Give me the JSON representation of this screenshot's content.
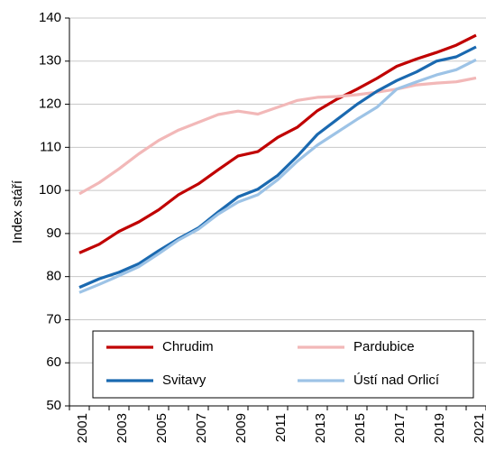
{
  "chart_data": {
    "type": "line",
    "y_label": "Index stáří",
    "categories": [
      "2001",
      null,
      "2003",
      null,
      "2005",
      null,
      "2007",
      null,
      "2009",
      null,
      "2011",
      null,
      "2013",
      null,
      "2015",
      null,
      "2017",
      null,
      "2019",
      null,
      "2021"
    ],
    "series": [
      {
        "name": "Chrudim",
        "color": "#c00000",
        "values": [
          85.5,
          87.5,
          90.5,
          92.7,
          95.5,
          99,
          101.5,
          104.8,
          108,
          109,
          112.3,
          114.7,
          118.5,
          121.2,
          123.5,
          126,
          128.8,
          130.5,
          132,
          133.7,
          136
        ]
      },
      {
        "name": "Pardubice",
        "color": "#f2b8b8",
        "values": [
          99.2,
          101.8,
          105,
          108.5,
          111.6,
          114,
          115.8,
          117.6,
          118.4,
          117.7,
          119.3,
          120.9,
          121.6,
          121.8,
          122.2,
          122.8,
          123.5,
          124.5,
          124.9,
          125.2,
          126.1
        ]
      },
      {
        "name": "Svitavy",
        "color": "#1a69b0",
        "values": [
          77.5,
          79.5,
          81,
          83,
          86,
          88.8,
          91.3,
          95,
          98.5,
          100.3,
          103.5,
          108,
          113,
          116.5,
          120,
          123,
          125.5,
          127.5,
          130,
          131,
          133.3
        ]
      },
      {
        "name": "Ústí nad Orlicí",
        "color": "#9dc3e6",
        "values": [
          76.3,
          78.2,
          80.2,
          82.3,
          85.3,
          88.5,
          91,
          94.5,
          97.3,
          99,
          102.5,
          106.8,
          110.5,
          113.5,
          116.5,
          119.3,
          123.5,
          125.2,
          126.8,
          128,
          130.3
        ]
      }
    ],
    "ylim": [
      50,
      140
    ],
    "yticks": [
      50,
      60,
      70,
      80,
      90,
      100,
      110,
      120,
      130,
      140
    ],
    "grid": true,
    "legend": "bottom"
  }
}
